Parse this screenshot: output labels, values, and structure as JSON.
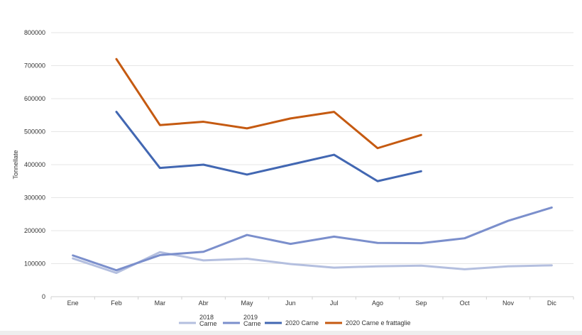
{
  "chart_data": {
    "type": "line",
    "title": "",
    "xlabel": "",
    "ylabel": "Tonnellate",
    "ylim": [
      0,
      800000
    ],
    "yticks": [
      "0",
      "100000",
      "200000",
      "300000",
      "400000",
      "500000",
      "600000",
      "700000",
      "800000"
    ],
    "grid": true,
    "legend_position": "bottom",
    "categories": [
      "Ene",
      "Feb",
      "Mar",
      "Abr",
      "May",
      "Jun",
      "Jul",
      "Ago",
      "Sep",
      "Oct",
      "Nov",
      "Dic"
    ],
    "series": [
      {
        "name": "2018 Carne",
        "name_lines": [
          "2018",
          "Carne"
        ],
        "color": "#b4bfdf",
        "values": [
          116000,
          72000,
          135000,
          110000,
          115000,
          99000,
          88000,
          92000,
          94000,
          83000,
          92000,
          95000
        ]
      },
      {
        "name": "2019 Carne",
        "name_lines": [
          "2019",
          "Carne"
        ],
        "color": "#7b8fcc",
        "values": [
          125000,
          80000,
          126000,
          136000,
          187000,
          160000,
          182000,
          163000,
          162000,
          177000,
          230000,
          270000
        ]
      },
      {
        "name": "2020 Carne",
        "name_lines": [
          "2020 Carne"
        ],
        "color": "#4267b2",
        "values": [
          null,
          560000,
          390000,
          400000,
          370000,
          400000,
          430000,
          350000,
          380000,
          null,
          null,
          null
        ]
      },
      {
        "name": "2020 Carne e frattaglie",
        "name_lines": [
          "2020 Carne e frattaglie"
        ],
        "color": "#c55a11",
        "values": [
          null,
          720000,
          520000,
          530000,
          510000,
          540000,
          560000,
          450000,
          490000,
          null,
          null,
          null
        ]
      }
    ]
  }
}
